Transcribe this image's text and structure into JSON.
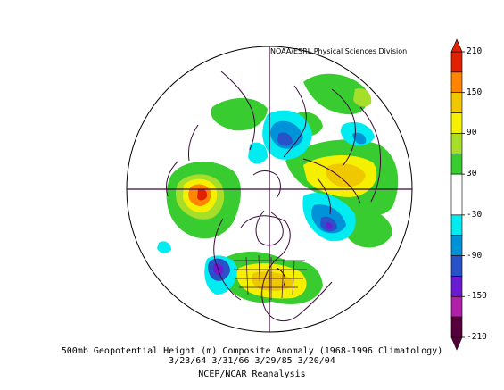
{
  "credit": "NOAA/ESRL Physical Sciences Division",
  "caption": {
    "line1": "500mb Geopotential Height (m) Composite Anomaly (1968-1996 Climatology)",
    "line2": "3/23/64 3/31/66 3/29/85 3/20/04",
    "line3": "NCEP/NCAR Reanalysis"
  },
  "colorbar": {
    "ticks": [
      "210",
      "150",
      "90",
      "30",
      "-30",
      "-90",
      "-150",
      "-210"
    ],
    "levels": [
      {
        "from": 180,
        "to": 210,
        "color": "#e02000"
      },
      {
        "from": 150,
        "to": 180,
        "color": "#ff8400"
      },
      {
        "from": 120,
        "to": 150,
        "color": "#f0c800"
      },
      {
        "from": 90,
        "to": 120,
        "color": "#f5f000"
      },
      {
        "from": 60,
        "to": 90,
        "color": "#a6de2a"
      },
      {
        "from": 30,
        "to": 60,
        "color": "#38cc30"
      },
      {
        "from": -30,
        "to": 30,
        "color": "#ffffff"
      },
      {
        "from": -60,
        "to": -30,
        "color": "#00ecf0"
      },
      {
        "from": -90,
        "to": -60,
        "color": "#0092d8"
      },
      {
        "from": -120,
        "to": -90,
        "color": "#2a52c8"
      },
      {
        "from": -150,
        "to": -120,
        "color": "#6a1ad0"
      },
      {
        "from": -180,
        "to": -150,
        "color": "#b020a8"
      },
      {
        "from": -210,
        "to": -180,
        "color": "#55003a"
      }
    ]
  }
}
